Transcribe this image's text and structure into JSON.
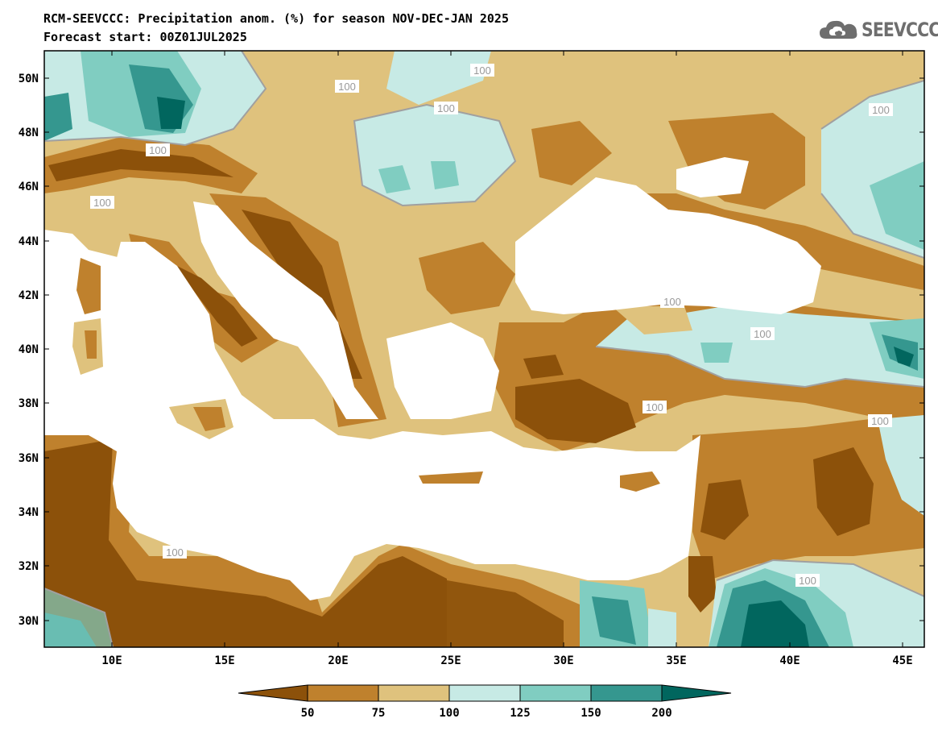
{
  "header": {
    "title_line1": "RCM-SEEVCCC: Precipitation anom. (%) for season NOV-DEC-JAN 2025",
    "title_line2": "Forecast start: 00Z01JUL2025"
  },
  "logo": {
    "text": "SEEVCCC",
    "icon": "cloud-icon"
  },
  "map": {
    "variable": "Precipitation anomaly (%)",
    "lat_labels": [
      "50N",
      "48N",
      "46N",
      "44N",
      "42N",
      "40N",
      "38N",
      "36N",
      "34N",
      "32N",
      "30N"
    ],
    "lon_labels": [
      "10E",
      "15E",
      "20E",
      "25E",
      "30E",
      "35E",
      "40E",
      "45E"
    ],
    "contour_labels": [
      "100",
      "100",
      "100",
      "100",
      "100",
      "100",
      "100",
      "100",
      "100",
      "100",
      "100",
      "100"
    ]
  },
  "colorbar": {
    "ticks": [
      "50",
      "75",
      "100",
      "125",
      "150",
      "200"
    ],
    "colors": {
      "lt50": "#8c510a",
      "50_75": "#bf812d",
      "75_100": "#dfc27d",
      "100_125": "#c7eae5",
      "125_150": "#80cdc1",
      "150_200": "#35978f",
      "gt200": "#01665e"
    }
  }
}
